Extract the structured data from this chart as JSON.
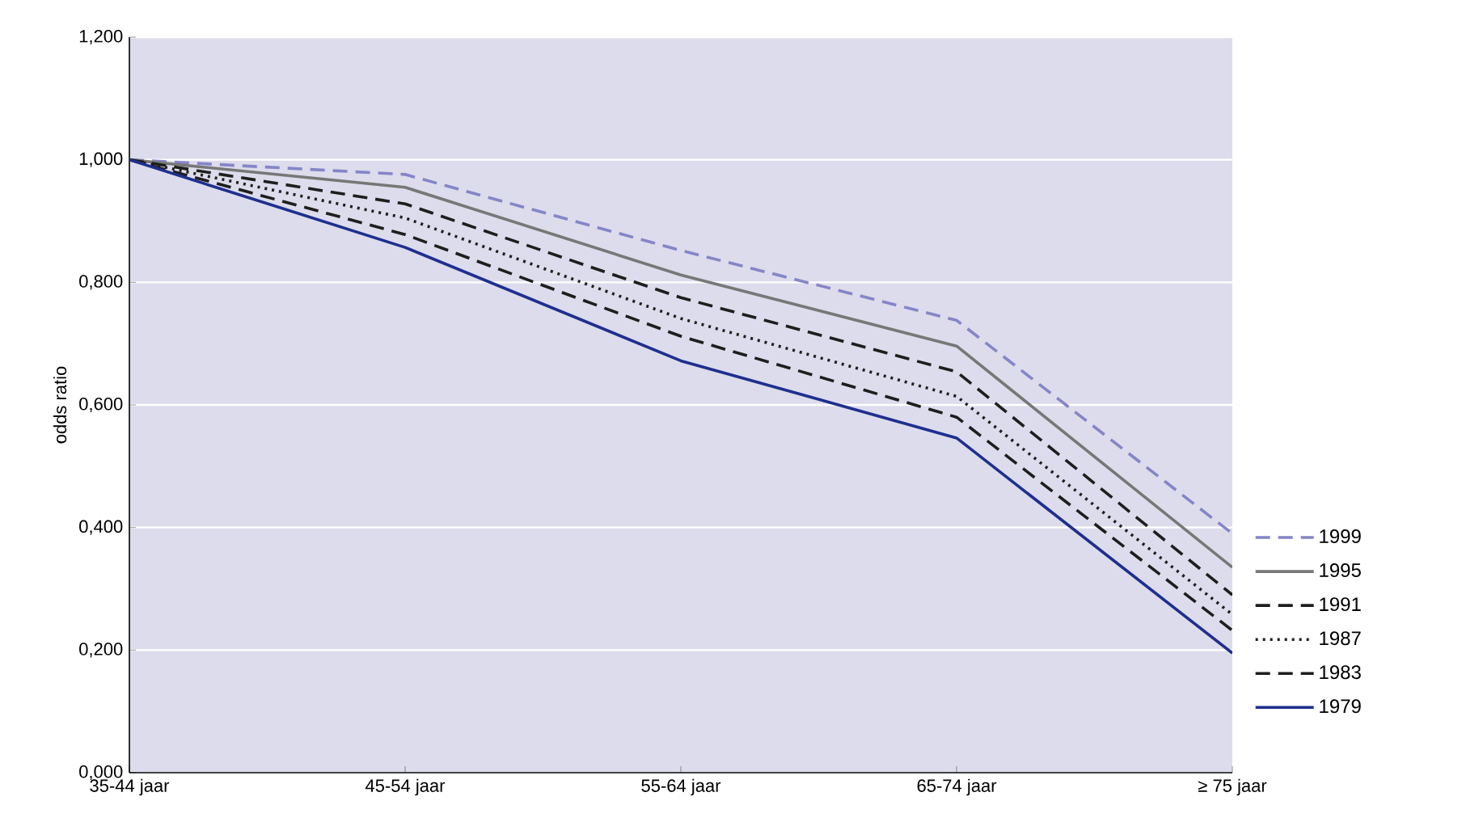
{
  "chart_data": {
    "type": "line",
    "ylabel": "odds ratio",
    "categories": [
      "35-44 jaar",
      "45-54 jaar",
      "55-64 jaar",
      "65-74 jaar",
      "≥ 75 jaar"
    ],
    "series": [
      {
        "name": "1999",
        "color": "#8585c8",
        "line_style": "dashed",
        "values": [
          1.0,
          0.976,
          0.852,
          0.738,
          0.39
        ]
      },
      {
        "name": "1995",
        "color": "#777777",
        "line_style": "solid",
        "values": [
          1.0,
          0.955,
          0.812,
          0.696,
          0.335
        ]
      },
      {
        "name": "1991",
        "color": "#1e1e1e",
        "line_style": "dashed",
        "values": [
          1.0,
          0.928,
          0.775,
          0.654,
          0.29
        ]
      },
      {
        "name": "1987",
        "color": "#1e1e1e",
        "line_style": "dotted",
        "values": [
          1.0,
          0.905,
          0.741,
          0.614,
          0.258
        ]
      },
      {
        "name": "1983",
        "color": "#1e1e1e",
        "line_style": "dashed",
        "values": [
          1.0,
          0.878,
          0.712,
          0.58,
          0.232
        ]
      },
      {
        "name": "1979",
        "color": "#1f2f8f",
        "line_style": "solid",
        "values": [
          1.0,
          0.857,
          0.672,
          0.546,
          0.195
        ]
      }
    ],
    "ylim": [
      0,
      1.2
    ],
    "yticks": [
      {
        "value": 0,
        "label": "0,000"
      },
      {
        "value": 0.2,
        "label": "0,200"
      },
      {
        "value": 0.4,
        "label": "0,400"
      },
      {
        "value": 0.6,
        "label": "0,600"
      },
      {
        "value": 0.8,
        "label": "0,800"
      },
      {
        "value": 1.0,
        "label": "1,000"
      },
      {
        "value": 1.2,
        "label": "1,200"
      }
    ],
    "grid": "y",
    "legend": "right",
    "marker": "none"
  }
}
